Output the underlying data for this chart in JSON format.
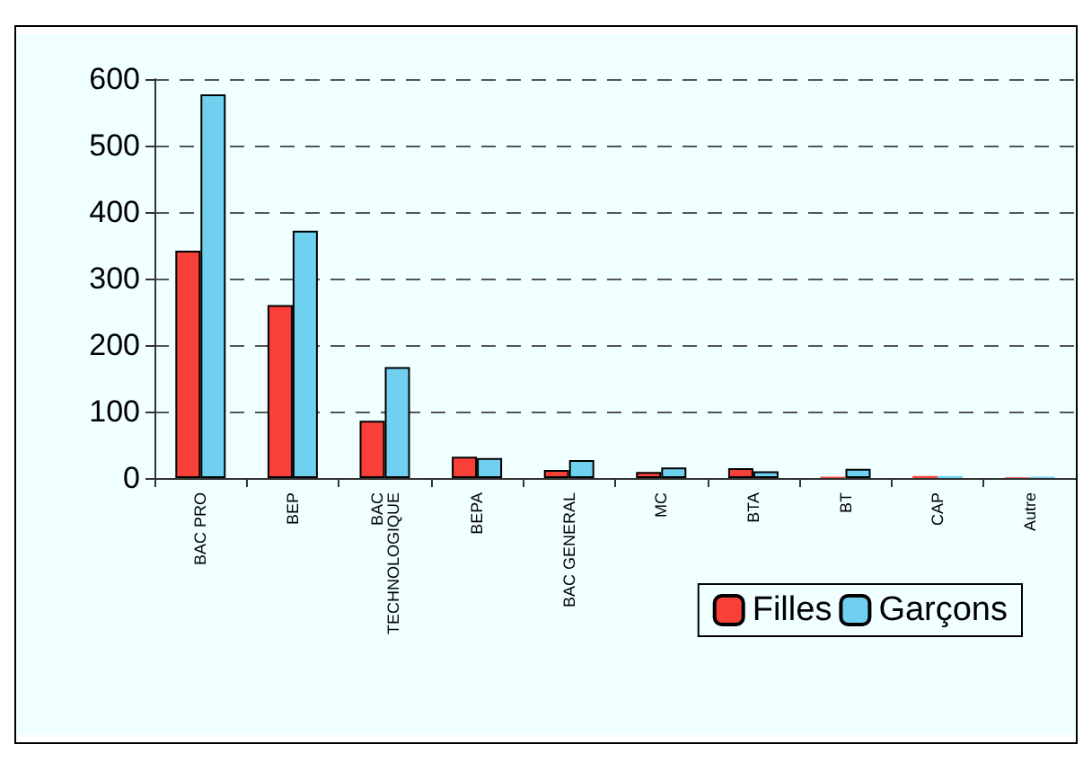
{
  "chart_data": {
    "type": "bar",
    "categories": [
      "BAC PRO",
      "BEP",
      "BAC TECHNOLOGIQUE",
      "BEPA",
      "BAC GENERAL",
      "MC",
      "BTA",
      "BT",
      "CAP",
      "Autre"
    ],
    "series": [
      {
        "name": "Filles",
        "color": "#f84038",
        "values": [
          342,
          260,
          86,
          32,
          12,
          9,
          15,
          2,
          3,
          1
        ]
      },
      {
        "name": "Garçons",
        "color": "#70d0f0",
        "values": [
          577,
          372,
          167,
          30,
          27,
          16,
          10,
          14,
          3,
          2
        ]
      }
    ],
    "ylim": [
      0,
      600
    ],
    "yticks": [
      0,
      100,
      200,
      300,
      400,
      500,
      600
    ],
    "grid": "y",
    "legend": "bottom right"
  }
}
